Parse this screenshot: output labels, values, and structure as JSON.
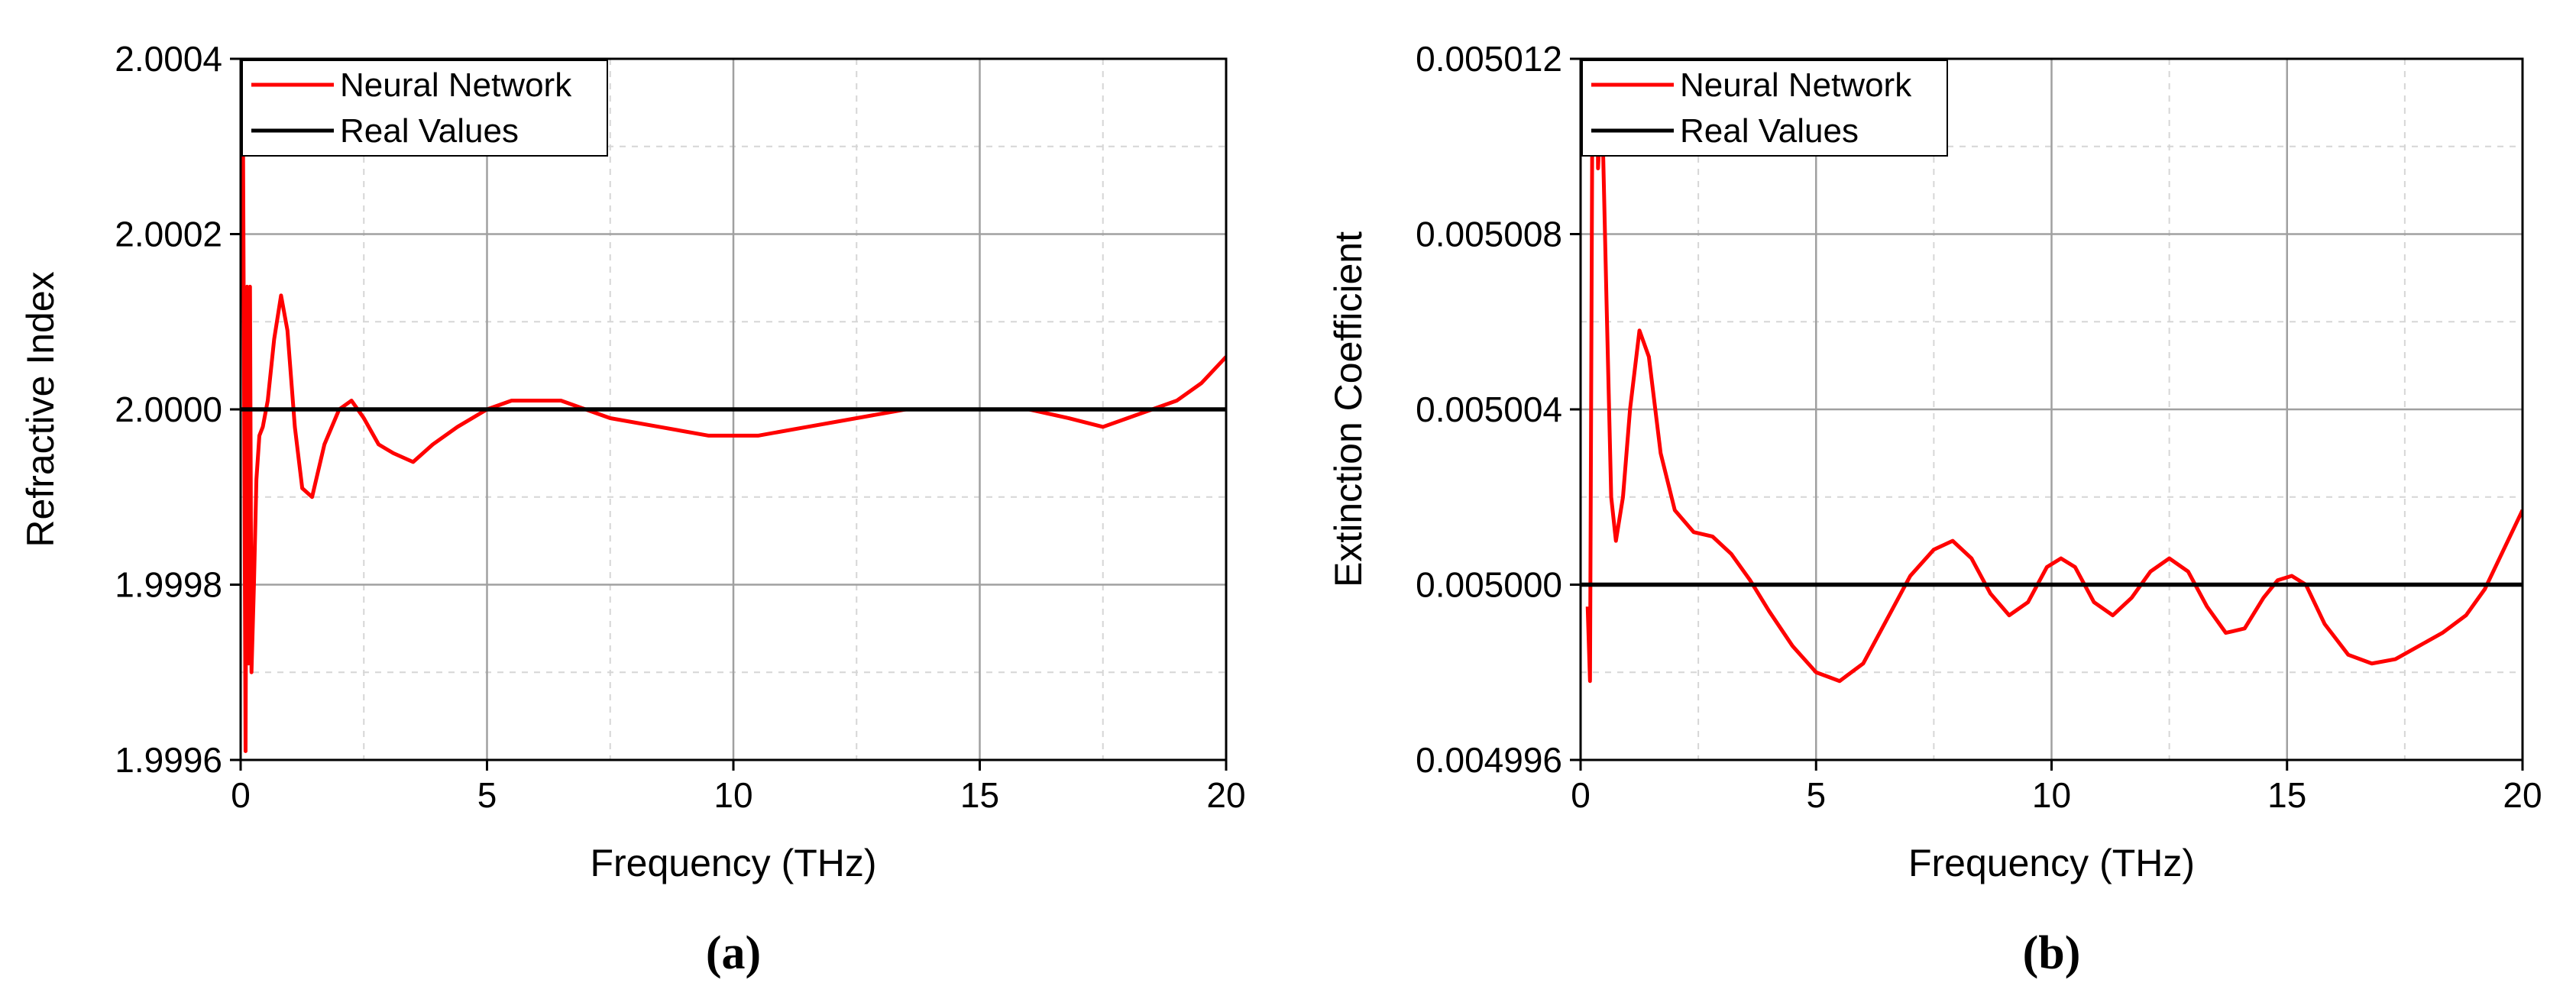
{
  "chart_data": [
    {
      "type": "line",
      "panel_label": "(a)",
      "xlabel": "Frequency (THz)",
      "ylabel": "Refractive Index",
      "xlim": [
        0,
        20
      ],
      "ylim": [
        1.9996,
        2.0004
      ],
      "x_ticks": [
        0,
        5,
        10,
        15,
        20
      ],
      "x_tick_labels": [
        "0",
        "5",
        "10",
        "15",
        "20"
      ],
      "y_ticks": [
        1.9996,
        1.9998,
        2.0,
        2.0002,
        2.0004
      ],
      "y_tick_labels": [
        "1.9996",
        "1.9998",
        "2.0000",
        "2.0002",
        "2.0004"
      ],
      "grid": true,
      "legend_position": "top-left",
      "series": [
        {
          "name": "Neural Network",
          "color": "#ff0000",
          "x": [
            0.05,
            0.1,
            0.13,
            0.16,
            0.19,
            0.22,
            0.27,
            0.32,
            0.38,
            0.45,
            0.55,
            0.68,
            0.82,
            0.95,
            1.1,
            1.25,
            1.45,
            1.7,
            2.0,
            2.25,
            2.5,
            2.8,
            3.1,
            3.5,
            3.9,
            4.4,
            5.0,
            5.5,
            6.0,
            6.5,
            7.0,
            7.5,
            8.5,
            9.5,
            10.5,
            11.5,
            12.5,
            13.5,
            14.5,
            15.2,
            16.0,
            16.8,
            17.5,
            18.0,
            18.5,
            19.0,
            19.5,
            20.0
          ],
          "y": [
            2.00029,
            1.99961,
            2.00014,
            1.99971,
            2.00014,
            1.9997,
            1.9998,
            1.99992,
            1.99997,
            1.99998,
            2.00001,
            2.00008,
            2.00013,
            2.00009,
            1.99998,
            1.99991,
            1.9999,
            1.99996,
            2.0,
            2.00001,
            1.99999,
            1.99996,
            1.99995,
            1.99994,
            1.99996,
            1.99998,
            2.0,
            2.00001,
            2.00001,
            2.00001,
            2.0,
            1.99999,
            1.99998,
            1.99997,
            1.99997,
            1.99998,
            1.99999,
            2.0,
            2.0,
            2.0,
            2.0,
            1.99999,
            1.99998,
            1.99999,
            2.0,
            2.00001,
            2.00003,
            2.00006
          ]
        },
        {
          "name": "Real Values",
          "color": "#000000",
          "x": [
            0,
            20
          ],
          "y": [
            2.0,
            2.0
          ]
        }
      ]
    },
    {
      "type": "line",
      "panel_label": "(b)",
      "xlabel": "Frequency (THz)",
      "ylabel": "Extinction Coefficient",
      "xlim": [
        0,
        20
      ],
      "ylim": [
        0.004996,
        0.005012
      ],
      "x_ticks": [
        0,
        5,
        10,
        15,
        20
      ],
      "x_tick_labels": [
        "0",
        "5",
        "10",
        "15",
        "20"
      ],
      "y_ticks": [
        0.004996,
        0.005,
        0.005004,
        0.005008,
        0.005012
      ],
      "y_tick_labels": [
        "0.004996",
        "0.005000",
        "0.005004",
        "0.005008",
        "0.005012"
      ],
      "grid": true,
      "legend_position": "top-left",
      "series": [
        {
          "name": "Neural Network",
          "color": "#ff0000",
          "x": [
            0.15,
            0.2,
            0.25,
            0.3,
            0.37,
            0.45,
            0.55,
            0.65,
            0.75,
            0.9,
            1.05,
            1.25,
            1.45,
            1.7,
            2.0,
            2.4,
            2.8,
            3.2,
            3.6,
            4.0,
            4.5,
            5.0,
            5.5,
            6.0,
            6.5,
            7.0,
            7.5,
            7.9,
            8.3,
            8.7,
            9.1,
            9.5,
            9.9,
            10.2,
            10.5,
            10.9,
            11.3,
            11.7,
            12.1,
            12.5,
            12.9,
            13.3,
            13.7,
            14.1,
            14.5,
            14.8,
            15.1,
            15.4,
            15.8,
            16.3,
            16.8,
            17.3,
            17.8,
            18.3,
            18.8,
            19.2,
            19.6,
            20.0
          ],
          "y": [
            0.0049995,
            0.0049978,
            0.005011,
            0.00502,
            0.0050095,
            0.0050112,
            0.0050065,
            0.005002,
            0.005001,
            0.005002,
            0.005004,
            0.0050058,
            0.0050052,
            0.005003,
            0.0050017,
            0.0050012,
            0.0050011,
            0.0050007,
            0.0050001,
            0.0049994,
            0.0049986,
            0.004998,
            0.0049978,
            0.0049982,
            0.0049992,
            0.0050002,
            0.0050008,
            0.005001,
            0.0050006,
            0.0049998,
            0.0049993,
            0.0049996,
            0.0050004,
            0.0050006,
            0.0050004,
            0.0049996,
            0.0049993,
            0.0049997,
            0.0050003,
            0.0050006,
            0.0050003,
            0.0049995,
            0.0049989,
            0.004999,
            0.0049997,
            0.0050001,
            0.0050002,
            0.005,
            0.0049991,
            0.0049984,
            0.0049982,
            0.0049983,
            0.0049986,
            0.0049989,
            0.0049993,
            0.0049999,
            0.0050008,
            0.0050017
          ]
        },
        {
          "name": "Real Values",
          "color": "#000000",
          "x": [
            0,
            20
          ],
          "y": [
            0.005,
            0.005
          ]
        }
      ]
    }
  ]
}
